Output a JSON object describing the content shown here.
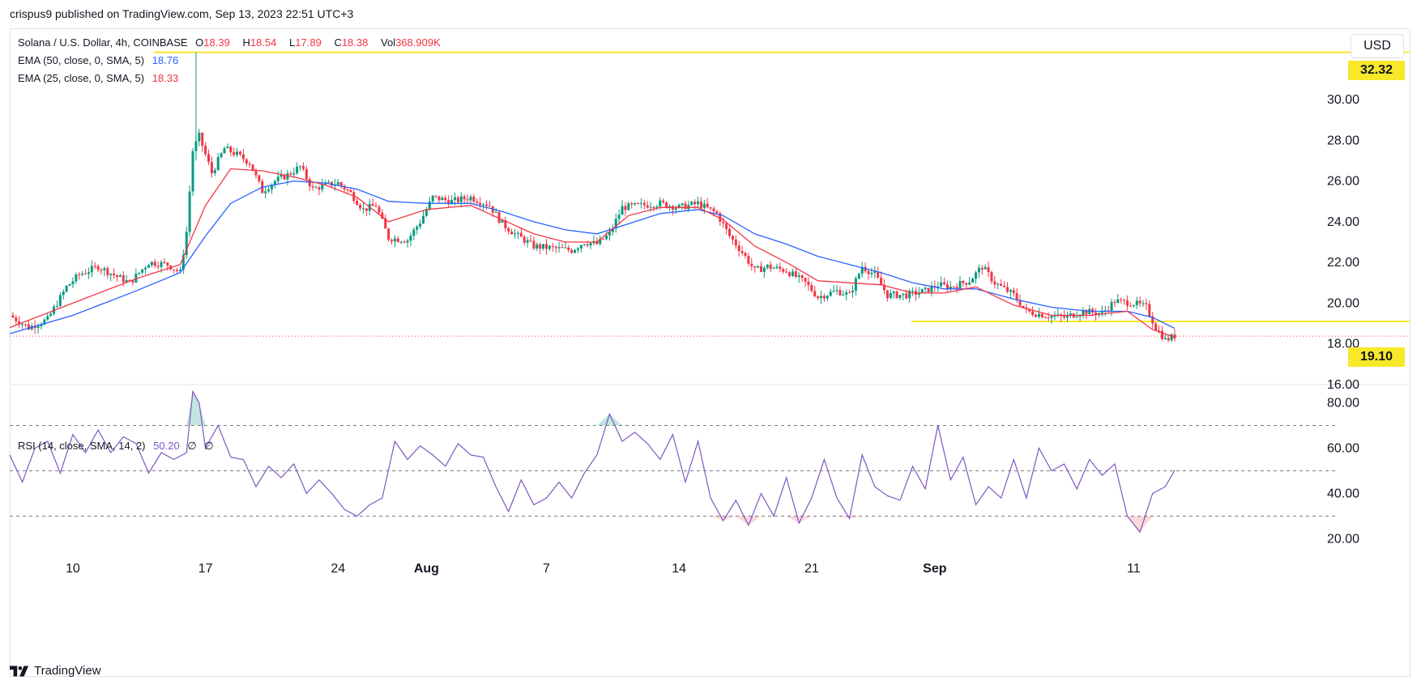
{
  "header": {
    "published": "crispus9 published on TradingView.com, Sep 13, 2023 22:51 UTC+3"
  },
  "legend": {
    "symbol": "Solana / U.S. Dollar, 4h, COINBASE",
    "open_label": "O",
    "open": "18.39",
    "high_label": "H",
    "high": "18.54",
    "low_label": "L",
    "low": "17.89",
    "close_label": "C",
    "close": "18.38",
    "vol_label": "Vol",
    "vol": "368.909K",
    "ema50_label": "EMA (50, close, 0, SMA, 5)",
    "ema50_value": "18.76",
    "ema25_label": "EMA (25, close, 0, SMA, 5)",
    "ema25_value": "18.33",
    "rsi_label": "RSI (14, close, SMA, 14, 2)",
    "rsi_value": "50.20",
    "rsi_extra1": "∅",
    "rsi_extra2": "∅"
  },
  "currency_button": "USD",
  "price_tags": {
    "upper": "32.32",
    "lower": "19.10"
  },
  "footer": {
    "brand": "TradingView",
    "logo_icon": "tradingview-logo-icon"
  },
  "colors": {
    "up": "#089981",
    "down": "#f23645",
    "ema50": "#2962ff",
    "ema25": "#f23645",
    "rsi": "#7e57c2",
    "level": "#f7e82a"
  },
  "chart_data": [
    {
      "type": "candlestick",
      "title": "Solana / U.S. Dollar, 4h, COINBASE",
      "ylim": [
        16,
        33.5
      ],
      "yticks": [
        "16.00",
        "18.00",
        "20.00",
        "22.00",
        "24.00",
        "26.00",
        "28.00",
        "30.00"
      ],
      "xticks": [
        "10",
        "17",
        "24",
        "Aug",
        "7",
        "14",
        "21",
        "Sep",
        "11"
      ],
      "xtick_index": [
        20,
        62,
        104,
        132,
        170,
        212,
        254,
        293,
        356
      ],
      "last_index": 369,
      "horizontal_levels": [
        32.32,
        19.1
      ],
      "current_price": 18.38,
      "close_path": [
        [
          0,
          19.4
        ],
        [
          6,
          18.8
        ],
        [
          12,
          19.2
        ],
        [
          18,
          20.8
        ],
        [
          22,
          21.4
        ],
        [
          28,
          21.8
        ],
        [
          34,
          21.3
        ],
        [
          38,
          21.0
        ],
        [
          44,
          22.0
        ],
        [
          50,
          21.9
        ],
        [
          54,
          21.5
        ],
        [
          56,
          23.5
        ],
        [
          58,
          27.5
        ],
        [
          60,
          28.2
        ],
        [
          64,
          26.4
        ],
        [
          68,
          27.6
        ],
        [
          72,
          27.3
        ],
        [
          76,
          26.9
        ],
        [
          80,
          25.5
        ],
        [
          84,
          26.0
        ],
        [
          88,
          26.3
        ],
        [
          92,
          26.7
        ],
        [
          96,
          25.6
        ],
        [
          100,
          25.8
        ],
        [
          104,
          25.9
        ],
        [
          108,
          25.4
        ],
        [
          112,
          24.6
        ],
        [
          116,
          24.8
        ],
        [
          120,
          23.2
        ],
        [
          126,
          23.1
        ],
        [
          130,
          24.0
        ],
        [
          134,
          25.2
        ],
        [
          140,
          25.0
        ],
        [
          146,
          25.2
        ],
        [
          152,
          24.8
        ],
        [
          156,
          23.9
        ],
        [
          160,
          23.4
        ],
        [
          166,
          22.8
        ],
        [
          172,
          22.7
        ],
        [
          178,
          22.6
        ],
        [
          182,
          23.0
        ],
        [
          186,
          22.9
        ],
        [
          190,
          23.4
        ],
        [
          194,
          24.7
        ],
        [
          200,
          24.8
        ],
        [
          206,
          24.9
        ],
        [
          212,
          24.7
        ],
        [
          218,
          24.9
        ],
        [
          224,
          24.4
        ],
        [
          228,
          23.3
        ],
        [
          232,
          22.5
        ],
        [
          236,
          21.6
        ],
        [
          240,
          21.8
        ],
        [
          246,
          21.6
        ],
        [
          252,
          21.0
        ],
        [
          256,
          20.3
        ],
        [
          262,
          20.6
        ],
        [
          266,
          20.4
        ],
        [
          270,
          21.8
        ],
        [
          274,
          21.4
        ],
        [
          278,
          20.4
        ],
        [
          284,
          20.4
        ],
        [
          290,
          20.6
        ],
        [
          294,
          20.9
        ],
        [
          298,
          20.8
        ],
        [
          304,
          21.1
        ],
        [
          308,
          21.8
        ],
        [
          312,
          21.0
        ],
        [
          318,
          20.4
        ],
        [
          322,
          19.6
        ],
        [
          328,
          19.4
        ],
        [
          334,
          19.3
        ],
        [
          340,
          19.6
        ],
        [
          346,
          19.5
        ],
        [
          350,
          20.1
        ],
        [
          356,
          20.0
        ],
        [
          360,
          19.8
        ],
        [
          363,
          18.8
        ],
        [
          366,
          18.2
        ],
        [
          369,
          18.38
        ]
      ],
      "ema50_path": [
        [
          0,
          18.5
        ],
        [
          20,
          19.4
        ],
        [
          40,
          20.6
        ],
        [
          54,
          21.5
        ],
        [
          62,
          23.3
        ],
        [
          70,
          24.9
        ],
        [
          80,
          25.7
        ],
        [
          90,
          26.0
        ],
        [
          100,
          25.9
        ],
        [
          110,
          25.6
        ],
        [
          120,
          25.0
        ],
        [
          132,
          24.9
        ],
        [
          146,
          24.9
        ],
        [
          156,
          24.5
        ],
        [
          166,
          24.0
        ],
        [
          176,
          23.6
        ],
        [
          186,
          23.4
        ],
        [
          196,
          23.9
        ],
        [
          206,
          24.4
        ],
        [
          218,
          24.6
        ],
        [
          226,
          24.3
        ],
        [
          236,
          23.4
        ],
        [
          246,
          22.9
        ],
        [
          256,
          22.3
        ],
        [
          266,
          21.9
        ],
        [
          276,
          21.5
        ],
        [
          286,
          21.0
        ],
        [
          296,
          20.7
        ],
        [
          306,
          20.7
        ],
        [
          318,
          20.2
        ],
        [
          330,
          19.8
        ],
        [
          342,
          19.6
        ],
        [
          354,
          19.6
        ],
        [
          362,
          19.3
        ],
        [
          369,
          18.76
        ]
      ],
      "ema25_path": [
        [
          0,
          18.8
        ],
        [
          20,
          20.0
        ],
        [
          40,
          21.2
        ],
        [
          54,
          21.9
        ],
        [
          62,
          24.8
        ],
        [
          70,
          26.6
        ],
        [
          80,
          26.5
        ],
        [
          90,
          26.2
        ],
        [
          100,
          25.8
        ],
        [
          110,
          25.2
        ],
        [
          120,
          24.0
        ],
        [
          132,
          24.6
        ],
        [
          146,
          24.8
        ],
        [
          156,
          24.1
        ],
        [
          166,
          23.4
        ],
        [
          176,
          23.0
        ],
        [
          186,
          23.0
        ],
        [
          196,
          24.3
        ],
        [
          206,
          24.7
        ],
        [
          218,
          24.7
        ],
        [
          226,
          24.1
        ],
        [
          236,
          22.8
        ],
        [
          246,
          22.0
        ],
        [
          256,
          21.1
        ],
        [
          266,
          21.0
        ],
        [
          276,
          20.9
        ],
        [
          286,
          20.5
        ],
        [
          296,
          20.5
        ],
        [
          306,
          20.8
        ],
        [
          318,
          19.9
        ],
        [
          330,
          19.4
        ],
        [
          342,
          19.4
        ],
        [
          354,
          19.6
        ],
        [
          362,
          18.7
        ],
        [
          369,
          18.33
        ]
      ],
      "rsi": {
        "ylim": [
          12,
          88
        ],
        "yticks": [
          "20.00",
          "40.00",
          "60.00",
          "80.00"
        ],
        "bands": [
          70,
          50,
          30
        ],
        "path": [
          [
            0,
            57
          ],
          [
            4,
            45
          ],
          [
            8,
            60
          ],
          [
            12,
            63
          ],
          [
            16,
            49
          ],
          [
            20,
            66
          ],
          [
            24,
            58
          ],
          [
            28,
            68
          ],
          [
            32,
            58
          ],
          [
            36,
            65
          ],
          [
            40,
            62
          ],
          [
            44,
            49
          ],
          [
            48,
            58
          ],
          [
            52,
            55
          ],
          [
            56,
            58
          ],
          [
            58,
            85
          ],
          [
            60,
            80
          ],
          [
            62,
            60
          ],
          [
            66,
            70
          ],
          [
            70,
            56
          ],
          [
            74,
            55
          ],
          [
            78,
            43
          ],
          [
            82,
            52
          ],
          [
            86,
            47
          ],
          [
            90,
            53
          ],
          [
            94,
            40
          ],
          [
            98,
            46
          ],
          [
            102,
            40
          ],
          [
            106,
            33
          ],
          [
            110,
            30
          ],
          [
            114,
            35
          ],
          [
            118,
            38
          ],
          [
            122,
            63
          ],
          [
            126,
            55
          ],
          [
            130,
            61
          ],
          [
            134,
            57
          ],
          [
            138,
            52
          ],
          [
            142,
            62
          ],
          [
            146,
            57
          ],
          [
            150,
            56
          ],
          [
            154,
            43
          ],
          [
            158,
            32
          ],
          [
            162,
            46
          ],
          [
            166,
            35
          ],
          [
            170,
            38
          ],
          [
            174,
            45
          ],
          [
            178,
            38
          ],
          [
            182,
            49
          ],
          [
            186,
            57
          ],
          [
            190,
            75
          ],
          [
            194,
            63
          ],
          [
            198,
            67
          ],
          [
            202,
            62
          ],
          [
            206,
            55
          ],
          [
            210,
            66
          ],
          [
            214,
            45
          ],
          [
            218,
            63
          ],
          [
            222,
            38
          ],
          [
            226,
            28
          ],
          [
            230,
            37
          ],
          [
            234,
            26
          ],
          [
            238,
            40
          ],
          [
            242,
            30
          ],
          [
            246,
            47
          ],
          [
            250,
            27
          ],
          [
            254,
            38
          ],
          [
            258,
            55
          ],
          [
            262,
            38
          ],
          [
            266,
            29
          ],
          [
            270,
            57
          ],
          [
            274,
            43
          ],
          [
            278,
            39
          ],
          [
            282,
            37
          ],
          [
            286,
            52
          ],
          [
            290,
            42
          ],
          [
            294,
            70
          ],
          [
            298,
            46
          ],
          [
            302,
            56
          ],
          [
            306,
            35
          ],
          [
            310,
            43
          ],
          [
            314,
            38
          ],
          [
            318,
            55
          ],
          [
            322,
            38
          ],
          [
            326,
            60
          ],
          [
            330,
            50
          ],
          [
            334,
            53
          ],
          [
            338,
            42
          ],
          [
            342,
            55
          ],
          [
            346,
            48
          ],
          [
            350,
            53
          ],
          [
            354,
            30
          ],
          [
            358,
            23
          ],
          [
            362,
            40
          ],
          [
            366,
            43
          ],
          [
            369,
            50.2
          ]
        ]
      }
    }
  ]
}
